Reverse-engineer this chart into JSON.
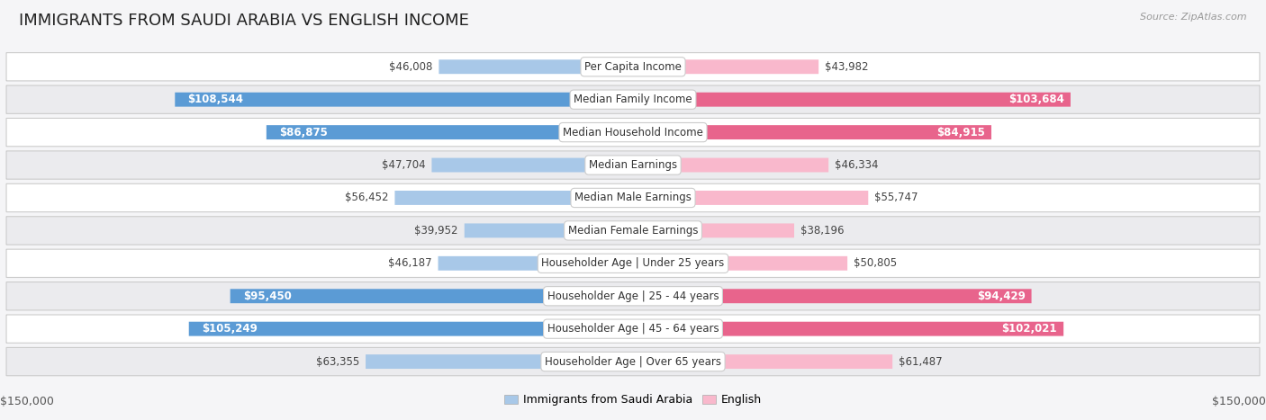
{
  "title": "IMMIGRANTS FROM SAUDI ARABIA VS ENGLISH INCOME",
  "source": "Source: ZipAtlas.com",
  "categories": [
    "Per Capita Income",
    "Median Family Income",
    "Median Household Income",
    "Median Earnings",
    "Median Male Earnings",
    "Median Female Earnings",
    "Householder Age | Under 25 years",
    "Householder Age | 25 - 44 years",
    "Householder Age | 45 - 64 years",
    "Householder Age | Over 65 years"
  ],
  "left_values": [
    46008,
    108544,
    86875,
    47704,
    56452,
    39952,
    46187,
    95450,
    105249,
    63355
  ],
  "right_values": [
    43982,
    103684,
    84915,
    46334,
    55747,
    38196,
    50805,
    94429,
    102021,
    61487
  ],
  "left_labels": [
    "$46,008",
    "$108,544",
    "$86,875",
    "$47,704",
    "$56,452",
    "$39,952",
    "$46,187",
    "$95,450",
    "$105,249",
    "$63,355"
  ],
  "right_labels": [
    "$43,982",
    "$103,684",
    "$84,915",
    "$46,334",
    "$55,747",
    "$38,196",
    "$50,805",
    "$94,429",
    "$102,021",
    "$61,487"
  ],
  "left_color_light": "#a8c8e8",
  "left_color_dark": "#5b9bd5",
  "right_color_light": "#f9b8cc",
  "right_color_dark": "#e8648c",
  "large_threshold": 70000,
  "max_value": 150000,
  "legend_left": "Immigrants from Saudi Arabia",
  "legend_right": "English",
  "bg_color": "#f5f5f7",
  "row_color_even": "#ffffff",
  "row_color_odd": "#ebebee",
  "title_fontsize": 13,
  "label_fontsize": 8.5,
  "category_fontsize": 8.5,
  "source_fontsize": 8
}
